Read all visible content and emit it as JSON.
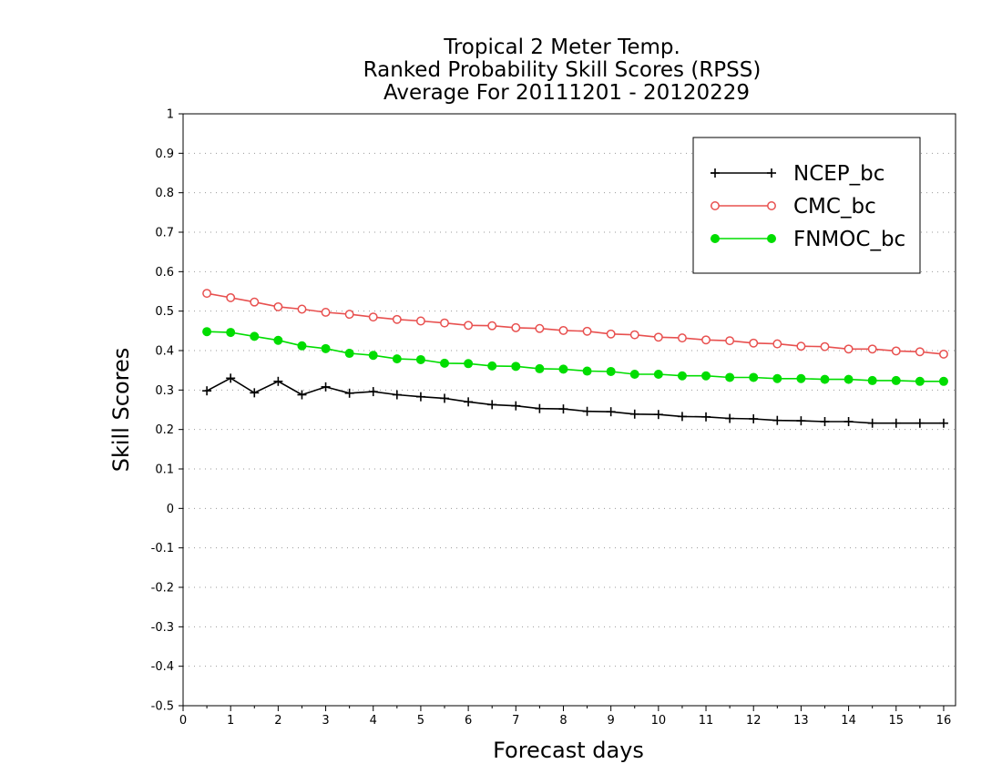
{
  "chart_data": {
    "type": "line",
    "title_lines": [
      "Tropical 2 Meter Temp.",
      "Ranked Probability Skill Scores (RPSS)",
      "Average For 20111201 - 20120229"
    ],
    "xlabel": "Forecast days",
    "ylabel": "Skill Scores",
    "xlim": [
      0,
      16.25
    ],
    "ylim": [
      -0.5,
      1
    ],
    "x_ticks": [
      "0",
      "1",
      "2",
      "3",
      "4",
      "5",
      "6",
      "7",
      "8",
      "9",
      "10",
      "11",
      "12",
      "13",
      "14",
      "15",
      "16"
    ],
    "y_ticks": [
      "1",
      "0.9",
      "0.8",
      "0.7",
      "0.6",
      "0.5",
      "0.4",
      "0.3",
      "0.2",
      "0.1",
      "0",
      "-0.1",
      "-0.2",
      "-0.3",
      "-0.4",
      "-0.5"
    ],
    "grid": true,
    "legend_position": "top-right",
    "x": [
      0.5,
      1,
      1.5,
      2,
      2.5,
      3,
      3.5,
      4,
      4.5,
      5,
      5.5,
      6,
      6.5,
      7,
      7.5,
      8,
      8.5,
      9,
      9.5,
      10,
      10.5,
      11,
      11.5,
      12,
      12.5,
      13,
      13.5,
      14,
      14.5,
      15,
      15.5,
      16
    ],
    "series": [
      {
        "name": "NCEP_bc",
        "color": "#000000",
        "marker": "plus",
        "values": [
          0.298,
          0.33,
          0.293,
          0.322,
          0.288,
          0.308,
          0.292,
          0.296,
          0.288,
          0.283,
          0.279,
          0.27,
          0.263,
          0.26,
          0.253,
          0.252,
          0.246,
          0.245,
          0.239,
          0.238,
          0.233,
          0.232,
          0.228,
          0.227,
          0.223,
          0.222,
          0.22,
          0.22,
          0.216,
          0.216,
          0.216,
          0.216
        ]
      },
      {
        "name": "CMC_bc",
        "color": "#e8504f",
        "marker": "open-circle",
        "values": [
          0.545,
          0.534,
          0.523,
          0.511,
          0.505,
          0.497,
          0.492,
          0.485,
          0.479,
          0.475,
          0.47,
          0.464,
          0.463,
          0.458,
          0.456,
          0.451,
          0.449,
          0.442,
          0.44,
          0.434,
          0.432,
          0.427,
          0.425,
          0.419,
          0.417,
          0.411,
          0.41,
          0.404,
          0.404,
          0.399,
          0.397,
          0.391
        ]
      },
      {
        "name": "FNMOC_bc",
        "color": "#00dd00",
        "marker": "filled-circle",
        "values": [
          0.448,
          0.446,
          0.436,
          0.426,
          0.412,
          0.405,
          0.393,
          0.388,
          0.379,
          0.377,
          0.368,
          0.367,
          0.361,
          0.36,
          0.354,
          0.353,
          0.348,
          0.347,
          0.34,
          0.34,
          0.336,
          0.336,
          0.332,
          0.332,
          0.329,
          0.329,
          0.327,
          0.327,
          0.324,
          0.324,
          0.322,
          0.322
        ]
      }
    ]
  }
}
